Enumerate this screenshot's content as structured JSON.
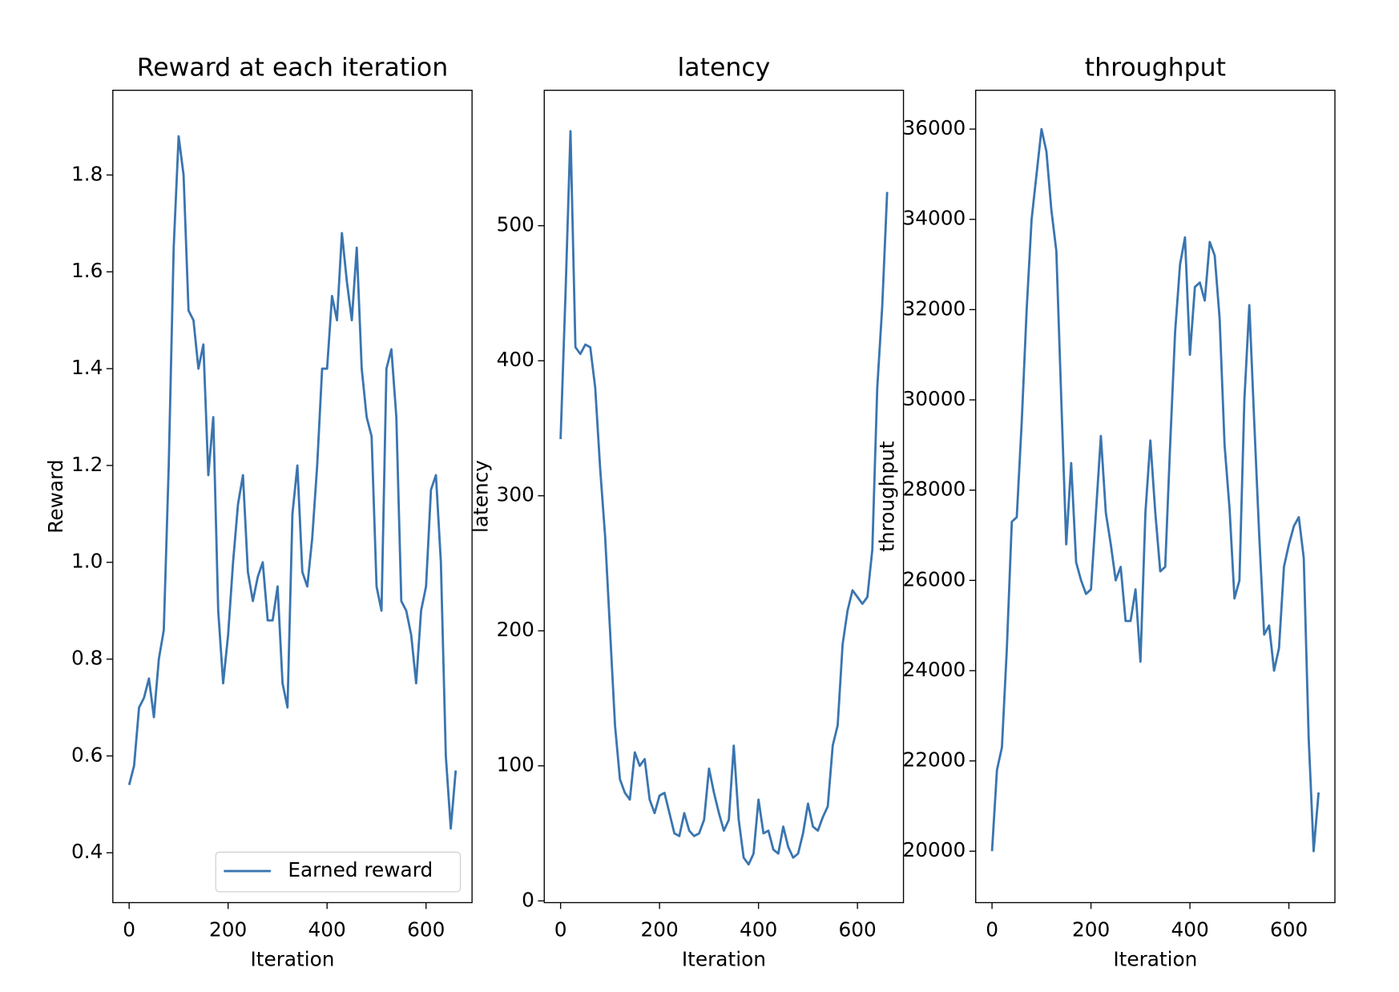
{
  "chart_data": [
    {
      "type": "line",
      "title": "Reward at each iteration",
      "xlabel": "Iteration",
      "ylabel": "Reward",
      "x": [
        0,
        10,
        20,
        30,
        40,
        50,
        60,
        70,
        80,
        90,
        100,
        110,
        120,
        130,
        140,
        150,
        160,
        170,
        180,
        190,
        200,
        210,
        220,
        230,
        240,
        250,
        260,
        270,
        280,
        290,
        300,
        310,
        320,
        330,
        340,
        350,
        360,
        370,
        380,
        390,
        400,
        410,
        420,
        430,
        440,
        450,
        460,
        470,
        480,
        490,
        500,
        510,
        520,
        530,
        540,
        550,
        560,
        570,
        580,
        590,
        600,
        610,
        620,
        630,
        640,
        650,
        660
      ],
      "series": [
        {
          "name": "Earned reward",
          "color": "#3a75b0",
          "values": [
            0.54,
            0.58,
            0.7,
            0.72,
            0.76,
            0.68,
            0.8,
            0.86,
            1.2,
            1.65,
            1.88,
            1.8,
            1.52,
            1.5,
            1.4,
            1.45,
            1.18,
            1.3,
            0.9,
            0.75,
            0.85,
            1.0,
            1.12,
            1.18,
            0.98,
            0.92,
            0.97,
            1.0,
            0.88,
            0.88,
            0.95,
            0.75,
            0.7,
            1.1,
            1.2,
            0.98,
            0.95,
            1.05,
            1.2,
            1.4,
            1.4,
            1.55,
            1.5,
            1.68,
            1.58,
            1.5,
            1.65,
            1.4,
            1.3,
            1.26,
            0.95,
            0.9,
            1.4,
            1.44,
            1.3,
            0.92,
            0.9,
            0.85,
            0.75,
            0.9,
            0.95,
            1.15,
            1.18,
            1.0,
            0.6,
            0.45,
            0.57
          ]
        }
      ],
      "xlim": [
        -33,
        693
      ],
      "ylim": [
        0.297,
        1.975
      ],
      "xticks": [
        0,
        200,
        400,
        600
      ],
      "yticks": [
        0.4,
        0.6,
        0.8,
        {
          "value": 1,
          "label": "1.0"
        },
        1.2,
        1.4,
        1.6,
        1.8
      ],
      "legend": "lower right"
    },
    {
      "type": "line",
      "title": "latency",
      "xlabel": "Iteration",
      "ylabel": "latency",
      "x": [
        0,
        10,
        20,
        30,
        40,
        50,
        60,
        70,
        80,
        90,
        100,
        110,
        120,
        130,
        140,
        150,
        160,
        170,
        180,
        190,
        200,
        210,
        220,
        230,
        240,
        250,
        260,
        270,
        280,
        290,
        300,
        310,
        320,
        330,
        340,
        350,
        360,
        370,
        380,
        390,
        400,
        410,
        420,
        430,
        440,
        450,
        460,
        470,
        480,
        490,
        500,
        510,
        520,
        530,
        540,
        550,
        560,
        570,
        580,
        590,
        600,
        610,
        620,
        630,
        640,
        650,
        660
      ],
      "series": [
        {
          "color": "#3a75b0",
          "values": [
            342,
            450,
            570,
            410,
            405,
            412,
            410,
            380,
            320,
            270,
            200,
            130,
            90,
            80,
            75,
            110,
            100,
            105,
            75,
            65,
            78,
            80,
            65,
            50,
            48,
            65,
            52,
            48,
            50,
            60,
            98,
            80,
            65,
            52,
            60,
            115,
            60,
            32,
            27,
            35,
            75,
            50,
            52,
            38,
            35,
            55,
            40,
            32,
            35,
            50,
            72,
            55,
            52,
            62,
            70,
            115,
            130,
            190,
            215,
            230,
            225,
            220,
            225,
            260,
            380,
            440,
            525
          ]
        }
      ],
      "xlim": [
        -33,
        693
      ],
      "ylim": [
        -1.3,
        600.3
      ],
      "xticks": [
        0,
        200,
        400,
        600
      ],
      "yticks": [
        0,
        100,
        200,
        300,
        400,
        500
      ]
    },
    {
      "type": "line",
      "title": "throughput",
      "xlabel": "Iteration",
      "ylabel": "throughput",
      "x": [
        0,
        10,
        20,
        30,
        40,
        50,
        60,
        70,
        80,
        90,
        100,
        110,
        120,
        130,
        140,
        150,
        160,
        170,
        180,
        190,
        200,
        210,
        220,
        230,
        240,
        250,
        260,
        270,
        280,
        290,
        300,
        310,
        320,
        330,
        340,
        350,
        360,
        370,
        380,
        390,
        400,
        410,
        420,
        430,
        440,
        450,
        460,
        470,
        480,
        490,
        500,
        510,
        520,
        530,
        540,
        550,
        560,
        570,
        580,
        590,
        600,
        610,
        620,
        630,
        640,
        650,
        660
      ],
      "series": [
        {
          "color": "#3a75b0",
          "values": [
            20000,
            21800,
            22300,
            24500,
            27300,
            27400,
            29500,
            32000,
            34000,
            35000,
            36000,
            35500,
            34200,
            33300,
            30000,
            26800,
            28600,
            26400,
            26000,
            25700,
            25800,
            27500,
            29200,
            27500,
            26800,
            26000,
            26300,
            25100,
            25100,
            25800,
            24200,
            27500,
            29100,
            27500,
            26200,
            26300,
            29000,
            31500,
            33000,
            33600,
            31000,
            32500,
            32600,
            32200,
            33500,
            33200,
            31800,
            29000,
            27600,
            25600,
            26000,
            30000,
            32100,
            29500,
            27000,
            24800,
            25000,
            24000,
            24500,
            26300,
            26800,
            27200,
            27400,
            26500,
            22500,
            20000,
            21300
          ]
        }
      ],
      "xlim": [
        -33,
        693
      ],
      "ylim": [
        18860,
        36860
      ],
      "xticks": [
        0,
        200,
        400,
        600
      ],
      "yticks": [
        20000,
        22000,
        24000,
        26000,
        28000,
        30000,
        32000,
        34000,
        36000
      ]
    }
  ]
}
